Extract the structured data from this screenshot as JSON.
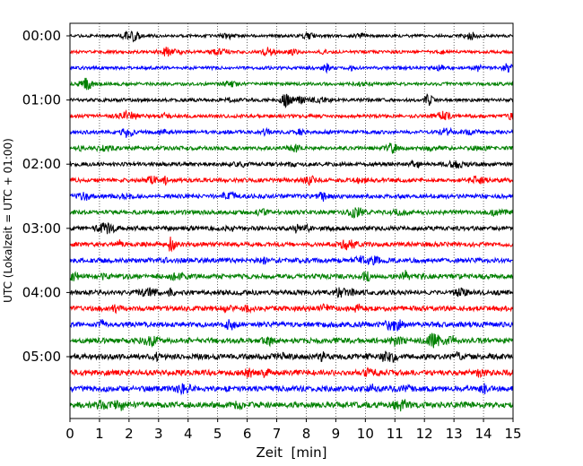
{
  "chart_data": {
    "type": "line",
    "xlabel": "Zeit  [min]",
    "ylabel": "UTC (Lokalzeit = UTC + 01:00)",
    "xlim": [
      0,
      15
    ],
    "x_ticks": [
      0,
      1,
      2,
      3,
      4,
      5,
      6,
      7,
      8,
      9,
      10,
      11,
      12,
      13,
      14,
      15
    ],
    "x_tick_labels": [
      "0",
      "1",
      "2",
      "3",
      "4",
      "5",
      "6",
      "7",
      "8",
      "9",
      "10",
      "11",
      "12",
      "13",
      "14",
      "15"
    ],
    "y_tick_labels": [
      "00:00",
      "01:00",
      "02:00",
      "03:00",
      "04:00",
      "05:00"
    ],
    "y_tick_rows": [
      0,
      4,
      8,
      12,
      16,
      20
    ],
    "grid": {
      "vertical": true,
      "style": "dotted"
    },
    "traces_per_hour": 4,
    "trace_minutes": 15,
    "trace_count": 24,
    "trace_colors": [
      "#000000",
      "#ff0000",
      "#0000ff",
      "#008000"
    ],
    "traces": [
      {
        "row": 0,
        "start": "00:00",
        "color": "#000000"
      },
      {
        "row": 1,
        "start": "00:15",
        "color": "#ff0000"
      },
      {
        "row": 2,
        "start": "00:30",
        "color": "#0000ff"
      },
      {
        "row": 3,
        "start": "00:45",
        "color": "#008000"
      },
      {
        "row": 4,
        "start": "01:00",
        "color": "#000000"
      },
      {
        "row": 5,
        "start": "01:15",
        "color": "#ff0000"
      },
      {
        "row": 6,
        "start": "01:30",
        "color": "#0000ff"
      },
      {
        "row": 7,
        "start": "01:45",
        "color": "#008000"
      },
      {
        "row": 8,
        "start": "02:00",
        "color": "#000000"
      },
      {
        "row": 9,
        "start": "02:15",
        "color": "#ff0000"
      },
      {
        "row": 10,
        "start": "02:30",
        "color": "#0000ff"
      },
      {
        "row": 11,
        "start": "02:45",
        "color": "#008000"
      },
      {
        "row": 12,
        "start": "03:00",
        "color": "#000000"
      },
      {
        "row": 13,
        "start": "03:15",
        "color": "#ff0000"
      },
      {
        "row": 14,
        "start": "03:30",
        "color": "#0000ff"
      },
      {
        "row": 15,
        "start": "03:45",
        "color": "#008000"
      },
      {
        "row": 16,
        "start": "04:00",
        "color": "#000000"
      },
      {
        "row": 17,
        "start": "04:15",
        "color": "#ff0000"
      },
      {
        "row": 18,
        "start": "04:30",
        "color": "#0000ff"
      },
      {
        "row": 19,
        "start": "04:45",
        "color": "#008000"
      },
      {
        "row": 20,
        "start": "05:00",
        "color": "#000000"
      },
      {
        "row": 21,
        "start": "05:15",
        "color": "#ff0000"
      },
      {
        "row": 22,
        "start": "05:30",
        "color": "#0000ff"
      },
      {
        "row": 23,
        "start": "05:45",
        "color": "#008000"
      }
    ]
  }
}
